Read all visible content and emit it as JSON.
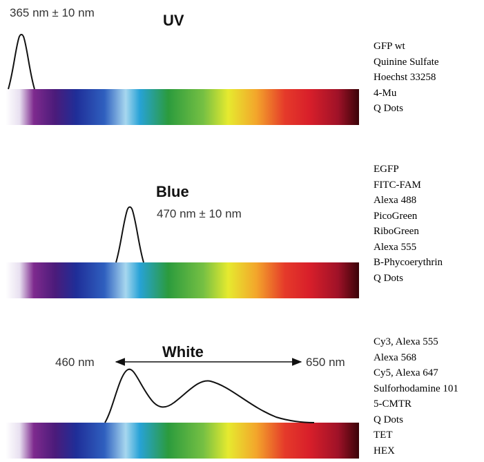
{
  "colors": {
    "spectrum": [
      "#ffffff",
      "#e8e0f0",
      "#7e2a8e",
      "#4b1b7a",
      "#1f2e98",
      "#2f60bf",
      "#a7d7ef",
      "#27a2d6",
      "#2b9b3d",
      "#76c043",
      "#e6ea2f",
      "#f3a52b",
      "#e53a2a",
      "#d81f2a",
      "#a01228",
      "#3a0308"
    ],
    "curve": "#111111",
    "text": "#111111"
  },
  "panels": [
    {
      "title": "UV",
      "wavelength": "365 nm ± 10 nm",
      "dyes": [
        "GFP wt",
        "Quinine Sulfate",
        "Hoechst 33258",
        "4-Mu",
        "Q Dots"
      ]
    },
    {
      "title": "Blue",
      "wavelength": "470 nm ± 10 nm",
      "dyes": [
        "EGFP",
        "FITC-FAM",
        "Alexa 488",
        "PicoGreen",
        "RiboGreen",
        "Alexa 555",
        "B-Phycoerythrin",
        "Q Dots"
      ]
    },
    {
      "title": "White",
      "range_start": "460 nm",
      "range_end": "650 nm",
      "dyes": [
        "Cy3, Alexa 555",
        "Alexa 568",
        "Cy5, Alexa 647",
        "Sulforhodamine 101",
        "5-CMTR",
        "Q Dots",
        "TET",
        "HEX"
      ]
    }
  ]
}
